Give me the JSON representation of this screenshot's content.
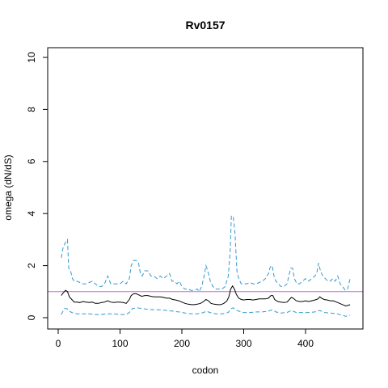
{
  "chart_data": {
    "type": "line",
    "title": "Rv0157",
    "xlabel": "codon",
    "ylabel": "omega (dN/dS)",
    "xlim": [
      0,
      480
    ],
    "ylim": [
      0,
      10
    ],
    "x_ticks": [
      0,
      100,
      200,
      300,
      400
    ],
    "y_ticks": [
      0,
      2,
      4,
      6,
      8,
      10
    ],
    "grid": false,
    "reference_line": {
      "y": 1,
      "color": "#cc66cc"
    },
    "series": [
      {
        "role": "upper",
        "style": "dashed",
        "color": "#3399cc",
        "points": [
          [
            5,
            2.3
          ],
          [
            8,
            2.7
          ],
          [
            12,
            2.9
          ],
          [
            15,
            3.0
          ],
          [
            17,
            1.9
          ],
          [
            20,
            1.8
          ],
          [
            23,
            1.5
          ],
          [
            26,
            1.4
          ],
          [
            30,
            1.4
          ],
          [
            35,
            1.35
          ],
          [
            40,
            1.3
          ],
          [
            45,
            1.3
          ],
          [
            50,
            1.35
          ],
          [
            55,
            1.4
          ],
          [
            60,
            1.3
          ],
          [
            65,
            1.2
          ],
          [
            70,
            1.2
          ],
          [
            75,
            1.3
          ],
          [
            80,
            1.6
          ],
          [
            85,
            1.3
          ],
          [
            90,
            1.3
          ],
          [
            95,
            1.3
          ],
          [
            100,
            1.3
          ],
          [
            105,
            1.4
          ],
          [
            110,
            1.3
          ],
          [
            115,
            1.5
          ],
          [
            118,
            2.0
          ],
          [
            122,
            2.2
          ],
          [
            126,
            2.2
          ],
          [
            130,
            2.1
          ],
          [
            133,
            1.7
          ],
          [
            136,
            1.6
          ],
          [
            140,
            1.8
          ],
          [
            145,
            1.8
          ],
          [
            150,
            1.6
          ],
          [
            155,
            1.6
          ],
          [
            160,
            1.5
          ],
          [
            165,
            1.6
          ],
          [
            170,
            1.5
          ],
          [
            175,
            1.6
          ],
          [
            180,
            1.7
          ],
          [
            184,
            1.4
          ],
          [
            188,
            1.4
          ],
          [
            192,
            1.3
          ],
          [
            196,
            1.4
          ],
          [
            200,
            1.2
          ],
          [
            205,
            1.1
          ],
          [
            210,
            1.1
          ],
          [
            215,
            1.05
          ],
          [
            220,
            1.05
          ],
          [
            225,
            1.1
          ],
          [
            228,
            1.0
          ],
          [
            232,
            1.2
          ],
          [
            236,
            1.6
          ],
          [
            239,
            2.0
          ],
          [
            242,
            1.8
          ],
          [
            246,
            1.4
          ],
          [
            250,
            1.2
          ],
          [
            255,
            1.1
          ],
          [
            260,
            1.1
          ],
          [
            265,
            1.1
          ],
          [
            270,
            1.2
          ],
          [
            275,
            1.6
          ],
          [
            278,
            2.5
          ],
          [
            280,
            3.9
          ],
          [
            283,
            3.9
          ],
          [
            286,
            3.2
          ],
          [
            289,
            1.8
          ],
          [
            292,
            1.5
          ],
          [
            296,
            1.3
          ],
          [
            300,
            1.3
          ],
          [
            305,
            1.3
          ],
          [
            310,
            1.35
          ],
          [
            315,
            1.3
          ],
          [
            320,
            1.3
          ],
          [
            325,
            1.35
          ],
          [
            330,
            1.4
          ],
          [
            335,
            1.5
          ],
          [
            340,
            1.7
          ],
          [
            343,
            1.95
          ],
          [
            346,
            2.0
          ],
          [
            349,
            1.6
          ],
          [
            352,
            1.4
          ],
          [
            356,
            1.3
          ],
          [
            360,
            1.2
          ],
          [
            365,
            1.2
          ],
          [
            370,
            1.3
          ],
          [
            373,
            1.6
          ],
          [
            376,
            1.9
          ],
          [
            379,
            1.9
          ],
          [
            382,
            1.5
          ],
          [
            386,
            1.3
          ],
          [
            390,
            1.3
          ],
          [
            395,
            1.4
          ],
          [
            400,
            1.5
          ],
          [
            405,
            1.4
          ],
          [
            410,
            1.5
          ],
          [
            415,
            1.6
          ],
          [
            418,
            1.7
          ],
          [
            421,
            2.1
          ],
          [
            424,
            1.8
          ],
          [
            428,
            1.6
          ],
          [
            432,
            1.5
          ],
          [
            436,
            1.4
          ],
          [
            440,
            1.4
          ],
          [
            444,
            1.5
          ],
          [
            448,
            1.4
          ],
          [
            452,
            1.6
          ],
          [
            456,
            1.3
          ],
          [
            460,
            1.2
          ],
          [
            464,
            1.05
          ],
          [
            468,
            1.1
          ],
          [
            472,
            1.5
          ]
        ]
      },
      {
        "role": "mean",
        "style": "solid",
        "color": "#000000",
        "points": [
          [
            5,
            0.85
          ],
          [
            8,
            0.95
          ],
          [
            12,
            1.05
          ],
          [
            15,
            1.0
          ],
          [
            18,
            0.8
          ],
          [
            22,
            0.7
          ],
          [
            26,
            0.6
          ],
          [
            30,
            0.6
          ],
          [
            35,
            0.58
          ],
          [
            40,
            0.62
          ],
          [
            45,
            0.6
          ],
          [
            50,
            0.58
          ],
          [
            55,
            0.6
          ],
          [
            60,
            0.55
          ],
          [
            65,
            0.55
          ],
          [
            70,
            0.58
          ],
          [
            75,
            0.6
          ],
          [
            80,
            0.65
          ],
          [
            85,
            0.6
          ],
          [
            90,
            0.58
          ],
          [
            95,
            0.6
          ],
          [
            100,
            0.6
          ],
          [
            105,
            0.58
          ],
          [
            110,
            0.55
          ],
          [
            115,
            0.7
          ],
          [
            118,
            0.85
          ],
          [
            122,
            0.92
          ],
          [
            126,
            0.92
          ],
          [
            130,
            0.88
          ],
          [
            135,
            0.82
          ],
          [
            140,
            0.85
          ],
          [
            145,
            0.85
          ],
          [
            150,
            0.82
          ],
          [
            155,
            0.8
          ],
          [
            160,
            0.8
          ],
          [
            165,
            0.8
          ],
          [
            170,
            0.78
          ],
          [
            175,
            0.75
          ],
          [
            180,
            0.75
          ],
          [
            185,
            0.7
          ],
          [
            190,
            0.68
          ],
          [
            195,
            0.65
          ],
          [
            200,
            0.6
          ],
          [
            205,
            0.55
          ],
          [
            210,
            0.52
          ],
          [
            215,
            0.5
          ],
          [
            220,
            0.5
          ],
          [
            225,
            0.52
          ],
          [
            230,
            0.55
          ],
          [
            235,
            0.62
          ],
          [
            239,
            0.7
          ],
          [
            243,
            0.65
          ],
          [
            247,
            0.55
          ],
          [
            252,
            0.52
          ],
          [
            258,
            0.5
          ],
          [
            263,
            0.5
          ],
          [
            268,
            0.55
          ],
          [
            273,
            0.65
          ],
          [
            276,
            0.8
          ],
          [
            279,
            1.1
          ],
          [
            282,
            1.22
          ],
          [
            285,
            1.1
          ],
          [
            288,
            0.9
          ],
          [
            292,
            0.75
          ],
          [
            296,
            0.7
          ],
          [
            300,
            0.68
          ],
          [
            305,
            0.7
          ],
          [
            310,
            0.7
          ],
          [
            315,
            0.68
          ],
          [
            320,
            0.7
          ],
          [
            325,
            0.72
          ],
          [
            330,
            0.72
          ],
          [
            335,
            0.72
          ],
          [
            340,
            0.75
          ],
          [
            344,
            0.85
          ],
          [
            347,
            0.85
          ],
          [
            350,
            0.7
          ],
          [
            355,
            0.62
          ],
          [
            360,
            0.6
          ],
          [
            365,
            0.58
          ],
          [
            370,
            0.6
          ],
          [
            374,
            0.7
          ],
          [
            377,
            0.78
          ],
          [
            380,
            0.75
          ],
          [
            385,
            0.65
          ],
          [
            390,
            0.62
          ],
          [
            395,
            0.62
          ],
          [
            400,
            0.65
          ],
          [
            405,
            0.62
          ],
          [
            410,
            0.65
          ],
          [
            415,
            0.68
          ],
          [
            420,
            0.72
          ],
          [
            423,
            0.8
          ],
          [
            426,
            0.75
          ],
          [
            430,
            0.7
          ],
          [
            435,
            0.68
          ],
          [
            440,
            0.65
          ],
          [
            445,
            0.65
          ],
          [
            450,
            0.6
          ],
          [
            455,
            0.55
          ],
          [
            460,
            0.5
          ],
          [
            465,
            0.45
          ],
          [
            470,
            0.48
          ],
          [
            472,
            0.5
          ]
        ]
      },
      {
        "role": "lower",
        "style": "dashed",
        "color": "#3399cc",
        "points": [
          [
            5,
            0.12
          ],
          [
            10,
            0.35
          ],
          [
            14,
            0.35
          ],
          [
            18,
            0.25
          ],
          [
            22,
            0.2
          ],
          [
            30,
            0.15
          ],
          [
            40,
            0.15
          ],
          [
            50,
            0.15
          ],
          [
            60,
            0.12
          ],
          [
            70,
            0.12
          ],
          [
            80,
            0.15
          ],
          [
            90,
            0.15
          ],
          [
            100,
            0.12
          ],
          [
            110,
            0.12
          ],
          [
            115,
            0.2
          ],
          [
            120,
            0.35
          ],
          [
            128,
            0.38
          ],
          [
            135,
            0.35
          ],
          [
            145,
            0.32
          ],
          [
            155,
            0.3
          ],
          [
            165,
            0.3
          ],
          [
            175,
            0.28
          ],
          [
            185,
            0.25
          ],
          [
            195,
            0.22
          ],
          [
            205,
            0.18
          ],
          [
            215,
            0.15
          ],
          [
            225,
            0.15
          ],
          [
            235,
            0.2
          ],
          [
            240,
            0.25
          ],
          [
            245,
            0.2
          ],
          [
            255,
            0.15
          ],
          [
            265,
            0.15
          ],
          [
            275,
            0.2
          ],
          [
            280,
            0.35
          ],
          [
            283,
            0.38
          ],
          [
            287,
            0.3
          ],
          [
            292,
            0.25
          ],
          [
            300,
            0.2
          ],
          [
            310,
            0.2
          ],
          [
            320,
            0.22
          ],
          [
            330,
            0.22
          ],
          [
            340,
            0.25
          ],
          [
            346,
            0.3
          ],
          [
            352,
            0.22
          ],
          [
            360,
            0.18
          ],
          [
            370,
            0.2
          ],
          [
            377,
            0.28
          ],
          [
            385,
            0.2
          ],
          [
            395,
            0.2
          ],
          [
            405,
            0.2
          ],
          [
            415,
            0.22
          ],
          [
            423,
            0.28
          ],
          [
            430,
            0.2
          ],
          [
            440,
            0.18
          ],
          [
            450,
            0.15
          ],
          [
            460,
            0.1
          ],
          [
            465,
            0.05
          ],
          [
            472,
            0.1
          ]
        ]
      }
    ]
  }
}
